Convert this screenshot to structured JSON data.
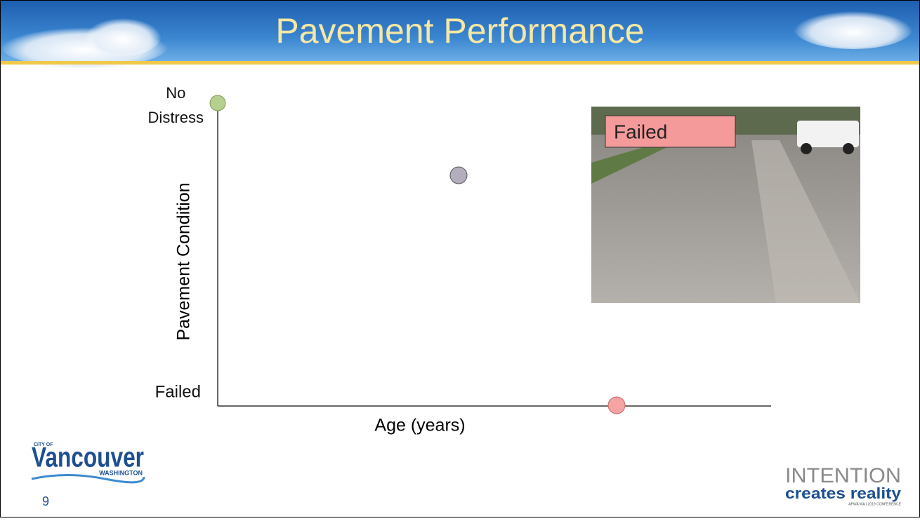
{
  "header": {
    "title": "Pavement Performance"
  },
  "chart": {
    "y_axis_label": "Pavement Condition",
    "x_axis_label": "Age (years)",
    "y_top_label": [
      "No",
      "Distress"
    ],
    "y_bottom_label": "Failed"
  },
  "photo": {
    "label": "Failed"
  },
  "footer": {
    "logo": {
      "small": "CITY OF",
      "name": "Vancouver",
      "sub": "WASHINGTON"
    },
    "slide_number": "9",
    "brand": {
      "line1": "INTENTION",
      "line2": "creates reality",
      "line3": "APWA WA | 2019 CONFERENCE"
    }
  }
}
